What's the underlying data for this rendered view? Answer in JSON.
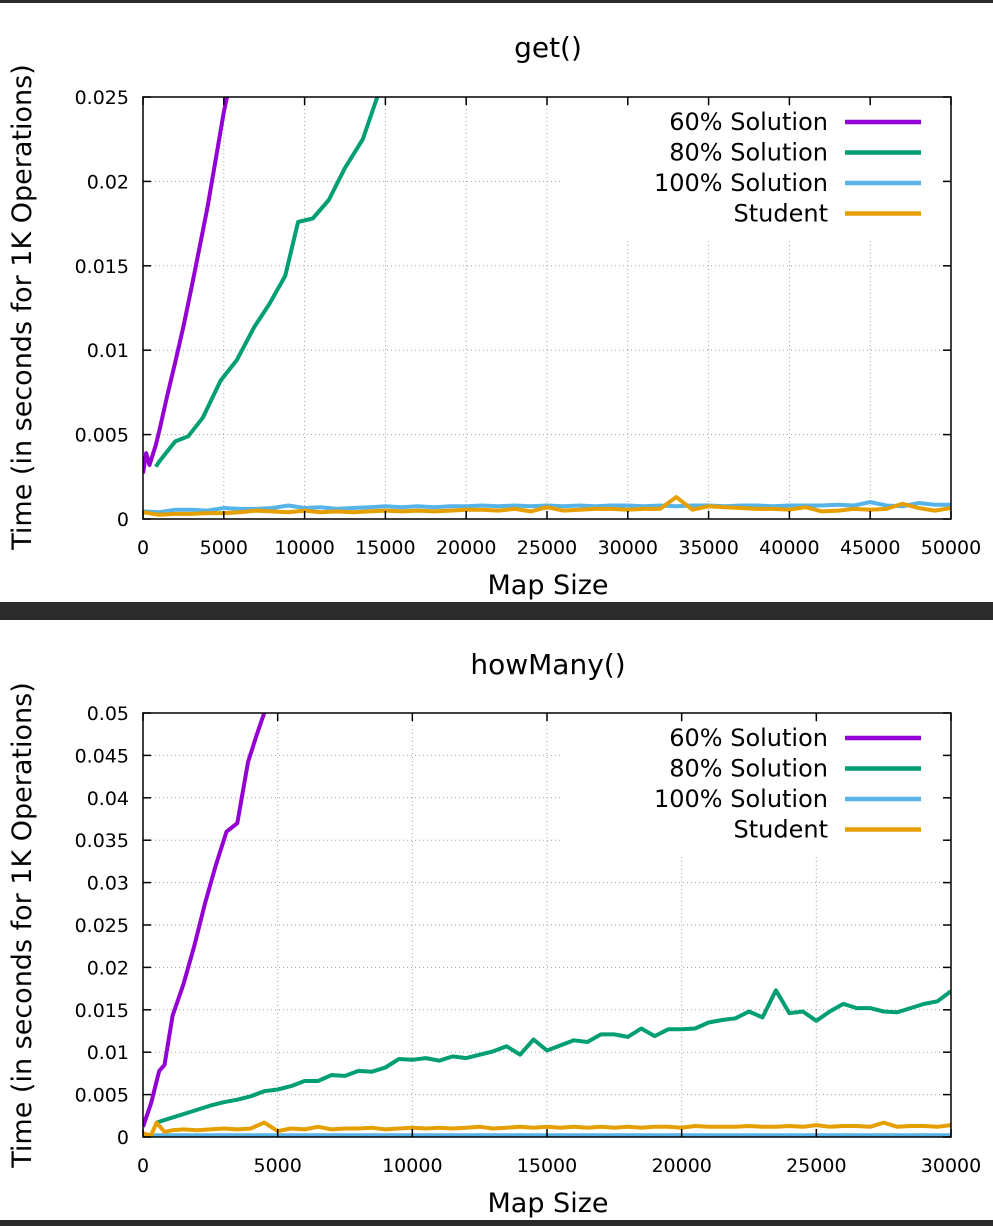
{
  "chart_data": [
    {
      "type": "line",
      "title": "get()",
      "xlabel": "Map Size",
      "ylabel": "Time (in seconds for 1K Operations)",
      "xlim": [
        0,
        50000
      ],
      "ylim": [
        0,
        0.025
      ],
      "xticks": [
        0,
        5000,
        10000,
        15000,
        20000,
        25000,
        30000,
        35000,
        40000,
        45000,
        50000
      ],
      "yticks": [
        0,
        0.005,
        0.01,
        0.015,
        0.02,
        0.025
      ],
      "xtick_labels": [
        "0",
        "5000",
        "10000",
        "15000",
        "20000",
        "25000",
        "30000",
        "35000",
        "40000",
        "45000",
        "50000"
      ],
      "ytick_labels": [
        "0",
        "0.005",
        "0.01",
        "0.015",
        "0.02",
        "0.025"
      ],
      "grid": true,
      "legend_position": "top-right",
      "series": [
        {
          "name": "60% Solution",
          "color": "#9400d3",
          "x": [
            0,
            200,
            400,
            600,
            800,
            1000,
            1500,
            2000,
            2500,
            3000,
            3500,
            4000,
            4500,
            5000,
            5200
          ],
          "y": [
            0.0027,
            0.0039,
            0.0032,
            0.0038,
            0.0044,
            0.0052,
            0.0073,
            0.0093,
            0.0114,
            0.0137,
            0.0161,
            0.0185,
            0.0213,
            0.0241,
            0.025
          ]
        },
        {
          "name": "80% Solution",
          "color": "#009e73",
          "x": [
            800,
            1000,
            1500,
            2000,
            2800,
            3700,
            4800,
            5800,
            6900,
            7800,
            8800,
            9600,
            10500,
            11500,
            12500,
            13600,
            14500
          ],
          "y": [
            0.0031,
            0.0034,
            0.004,
            0.0046,
            0.0049,
            0.006,
            0.0082,
            0.0094,
            0.0114,
            0.0127,
            0.0144,
            0.0176,
            0.0178,
            0.0189,
            0.0208,
            0.0225,
            0.025
          ]
        },
        {
          "name": "100% Solution",
          "color": "#56b4e9",
          "x": [
            0,
            1000,
            2000,
            3000,
            4000,
            5000,
            6000,
            7000,
            8000,
            9000,
            10000,
            11000,
            12000,
            13000,
            14000,
            15000,
            16000,
            17000,
            18000,
            19000,
            20000,
            21000,
            22000,
            23000,
            24000,
            25000,
            26000,
            27000,
            28000,
            29000,
            30000,
            31000,
            32000,
            33000,
            34000,
            35000,
            36000,
            37000,
            38000,
            39000,
            40000,
            41000,
            42000,
            43000,
            44000,
            45000,
            46000,
            47000,
            48000,
            49000,
            50000
          ],
          "y": [
            0.00045,
            0.0004,
            0.00055,
            0.00055,
            0.0005,
            0.00065,
            0.0006,
            0.0006,
            0.00065,
            0.0008,
            0.00065,
            0.0007,
            0.0006,
            0.00065,
            0.0007,
            0.00075,
            0.0007,
            0.00075,
            0.0007,
            0.00075,
            0.00075,
            0.0008,
            0.00075,
            0.0008,
            0.00075,
            0.0008,
            0.00075,
            0.0008,
            0.00075,
            0.0008,
            0.0008,
            0.00075,
            0.0008,
            0.00075,
            0.0008,
            0.0008,
            0.00075,
            0.0008,
            0.0008,
            0.00075,
            0.0008,
            0.0008,
            0.0008,
            0.00085,
            0.0008,
            0.001,
            0.0008,
            0.00075,
            0.00095,
            0.00085,
            0.00085
          ]
        },
        {
          "name": "Student",
          "color": "#e69f00",
          "x": [
            0,
            1000,
            2000,
            3000,
            4000,
            5000,
            6000,
            7000,
            8000,
            9000,
            10000,
            11000,
            12000,
            13000,
            14000,
            15000,
            16000,
            17000,
            18000,
            19000,
            20000,
            21000,
            22000,
            23000,
            24000,
            25000,
            26000,
            27000,
            28000,
            29000,
            30000,
            31000,
            32000,
            33000,
            34000,
            35000,
            36000,
            37000,
            38000,
            39000,
            40000,
            41000,
            42000,
            43000,
            44000,
            45000,
            46000,
            47000,
            48000,
            49000,
            50000
          ],
          "y": [
            0.0004,
            0.00025,
            0.0003,
            0.0003,
            0.00035,
            0.00035,
            0.0004,
            0.0005,
            0.00045,
            0.0004,
            0.0005,
            0.0004,
            0.00045,
            0.0004,
            0.00045,
            0.0005,
            0.00045,
            0.0005,
            0.00045,
            0.0005,
            0.00055,
            0.00055,
            0.0005,
            0.0006,
            0.00045,
            0.0007,
            0.0005,
            0.00055,
            0.0006,
            0.0006,
            0.00055,
            0.0006,
            0.0006,
            0.0013,
            0.00055,
            0.00075,
            0.0007,
            0.00065,
            0.0006,
            0.0006,
            0.00055,
            0.0007,
            0.00045,
            0.0005,
            0.0006,
            0.00055,
            0.0006,
            0.0009,
            0.00065,
            0.0005,
            0.00065
          ]
        }
      ]
    },
    {
      "type": "line",
      "title": "howMany()",
      "xlabel": "Map Size",
      "ylabel": "Time (in seconds for 1K Operations)",
      "xlim": [
        0,
        30000
      ],
      "ylim": [
        0,
        0.05
      ],
      "xticks": [
        0,
        5000,
        10000,
        15000,
        20000,
        25000,
        30000
      ],
      "yticks": [
        0,
        0.005,
        0.01,
        0.015,
        0.02,
        0.025,
        0.03,
        0.035,
        0.04,
        0.045,
        0.05
      ],
      "xtick_labels": [
        "0",
        "5000",
        "10000",
        "15000",
        "20000",
        "25000",
        "30000"
      ],
      "ytick_labels": [
        "0",
        "0.005",
        "0.01",
        "0.015",
        "0.02",
        "0.025",
        "0.03",
        "0.035",
        "0.04",
        "0.045",
        "0.05"
      ],
      "grid": true,
      "legend_position": "top-right",
      "series": [
        {
          "name": "60% Solution",
          "color": "#9400d3",
          "x": [
            0,
            300,
            600,
            800,
            1100,
            1500,
            1900,
            2300,
            2700,
            3100,
            3500,
            3900,
            4200,
            4500
          ],
          "y": [
            0.0012,
            0.004,
            0.0078,
            0.0085,
            0.0143,
            0.018,
            0.0225,
            0.0275,
            0.032,
            0.036,
            0.037,
            0.0442,
            0.0472,
            0.05
          ]
        },
        {
          "name": "80% Solution",
          "color": "#009e73",
          "x": [
            500,
            1000,
            1500,
            2000,
            2500,
            3000,
            3500,
            4000,
            4500,
            5000,
            5500,
            6000,
            6500,
            7000,
            7500,
            8000,
            8500,
            9000,
            9500,
            10000,
            10500,
            11000,
            11500,
            12000,
            12500,
            13000,
            13500,
            14000,
            14500,
            15000,
            15500,
            16000,
            16500,
            17000,
            17500,
            18000,
            18500,
            19000,
            19500,
            20000,
            20500,
            21000,
            21500,
            22000,
            22500,
            23000,
            23500,
            24000,
            24500,
            25000,
            25500,
            26000,
            26500,
            27000,
            27500,
            28000,
            28500,
            29000,
            29500,
            30000
          ],
          "y": [
            0.0017,
            0.0022,
            0.0027,
            0.0032,
            0.0037,
            0.0041,
            0.0044,
            0.0048,
            0.0054,
            0.0056,
            0.006,
            0.0066,
            0.0066,
            0.0073,
            0.0072,
            0.0078,
            0.0077,
            0.0082,
            0.0092,
            0.0091,
            0.0093,
            0.009,
            0.0095,
            0.0093,
            0.0097,
            0.0101,
            0.0107,
            0.0097,
            0.0115,
            0.0102,
            0.0108,
            0.0114,
            0.0112,
            0.0121,
            0.0121,
            0.0118,
            0.0128,
            0.0119,
            0.0127,
            0.0127,
            0.0128,
            0.0135,
            0.0138,
            0.014,
            0.0148,
            0.0141,
            0.0173,
            0.0146,
            0.0148,
            0.0137,
            0.0148,
            0.0157,
            0.0152,
            0.0152,
            0.0148,
            0.0147,
            0.0152,
            0.0157,
            0.016,
            0.0172
          ]
        },
        {
          "name": "100% Solution",
          "color": "#56b4e9",
          "x": [
            0,
            5000,
            10000,
            15000,
            20000,
            25000,
            30000
          ],
          "y": [
            0.0002,
            0.0002,
            0.0002,
            0.0002,
            0.0002,
            0.0002,
            0.0002
          ]
        },
        {
          "name": "Student",
          "color": "#e69f00",
          "x": [
            0,
            300,
            500,
            800,
            1100,
            1500,
            2000,
            2500,
            3000,
            3500,
            4000,
            4500,
            5000,
            5500,
            6000,
            6500,
            7000,
            7500,
            8000,
            8500,
            9000,
            9500,
            10000,
            10500,
            11000,
            11500,
            12000,
            12500,
            13000,
            13500,
            14000,
            14500,
            15000,
            15500,
            16000,
            16500,
            17000,
            17500,
            18000,
            18500,
            19000,
            19500,
            20000,
            20500,
            21000,
            21500,
            22000,
            22500,
            23000,
            23500,
            24000,
            24500,
            25000,
            25500,
            26000,
            26500,
            27000,
            27500,
            28000,
            28500,
            29000,
            29500,
            30000
          ],
          "y": [
            0.0004,
            0.0002,
            0.0017,
            0.0006,
            0.0008,
            0.0009,
            0.0008,
            0.0009,
            0.001,
            0.0009,
            0.001,
            0.0017,
            0.0007,
            0.001,
            0.0009,
            0.0012,
            0.0009,
            0.001,
            0.001,
            0.0011,
            0.0009,
            0.001,
            0.0011,
            0.001,
            0.0011,
            0.001,
            0.0011,
            0.0012,
            0.001,
            0.0011,
            0.0012,
            0.0011,
            0.0012,
            0.0011,
            0.0012,
            0.0011,
            0.0012,
            0.0011,
            0.0012,
            0.0011,
            0.0012,
            0.0012,
            0.0011,
            0.0013,
            0.0012,
            0.0012,
            0.0012,
            0.0013,
            0.0012,
            0.0012,
            0.0013,
            0.0012,
            0.0014,
            0.0012,
            0.0013,
            0.0013,
            0.0012,
            0.0017,
            0.0012,
            0.0013,
            0.0013,
            0.0012,
            0.0014
          ]
        }
      ]
    }
  ]
}
